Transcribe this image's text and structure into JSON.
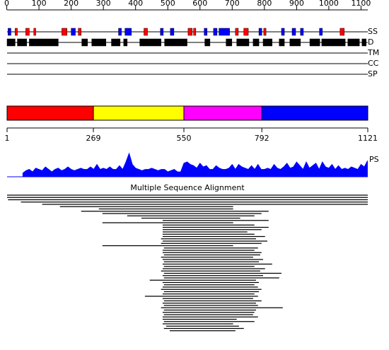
{
  "length": 1121,
  "ruler": {
    "ticks": [
      0,
      100,
      200,
      300,
      400,
      500,
      600,
      700,
      800,
      900,
      1000,
      1100
    ]
  },
  "tracks": {
    "ss": {
      "label": "SS",
      "helix_color": "#ff0000",
      "strand_color": "#0000ff",
      "helices": [
        [
          26,
          33
        ],
        [
          59,
          70
        ],
        [
          84,
          90
        ],
        [
          171,
          187
        ],
        [
          222,
          231
        ],
        [
          426,
          437
        ],
        [
          563,
          576
        ],
        [
          580,
          587
        ],
        [
          710,
          719
        ],
        [
          736,
          750
        ],
        [
          798,
          805
        ],
        [
          1035,
          1048
        ]
      ],
      "strands": [
        [
          4,
          13
        ],
        [
          200,
          213
        ],
        [
          347,
          356
        ],
        [
          367,
          387
        ],
        [
          477,
          486
        ],
        [
          508,
          519
        ],
        [
          613,
          622
        ],
        [
          642,
          653
        ],
        [
          659,
          692
        ],
        [
          783,
          792
        ],
        [
          853,
          862
        ],
        [
          886,
          897
        ],
        [
          912,
          921
        ],
        [
          971,
          980
        ]
      ]
    },
    "d": {
      "label": "D",
      "color": "#000000",
      "segments": [
        [
          1,
          26
        ],
        [
          33,
          62
        ],
        [
          70,
          160
        ],
        [
          233,
          251
        ],
        [
          264,
          308
        ],
        [
          325,
          352
        ],
        [
          363,
          374
        ],
        [
          413,
          479
        ],
        [
          490,
          560
        ],
        [
          615,
          631
        ],
        [
          681,
          699
        ],
        [
          714,
          752
        ],
        [
          765,
          783
        ],
        [
          796,
          824
        ],
        [
          846,
          862
        ],
        [
          879,
          912
        ],
        [
          941,
          972
        ],
        [
          978,
          1051
        ],
        [
          1059,
          1095
        ],
        [
          1103,
          1116
        ]
      ]
    },
    "tm": {
      "label": "TM"
    },
    "cc": {
      "label": "CC"
    },
    "sp": {
      "label": "SP"
    }
  },
  "domains": {
    "segments": [
      {
        "start": 1,
        "end": 269,
        "color": "#ff0000"
      },
      {
        "start": 269,
        "end": 550,
        "color": "#ffff00"
      },
      {
        "start": 550,
        "end": 792,
        "color": "#ff00ff"
      },
      {
        "start": 792,
        "end": 1121,
        "color": "#0000ff"
      }
    ],
    "boundaries": [
      1,
      269,
      550,
      792,
      1121
    ]
  },
  "ps": {
    "label": "PS",
    "color": "#0000ff",
    "start": 50,
    "step": 10,
    "values": [
      0.15,
      0.25,
      0.3,
      0.2,
      0.35,
      0.3,
      0.25,
      0.4,
      0.3,
      0.2,
      0.3,
      0.35,
      0.25,
      0.3,
      0.4,
      0.3,
      0.25,
      0.3,
      0.35,
      0.3,
      0.3,
      0.4,
      0.3,
      0.5,
      0.3,
      0.35,
      0.3,
      0.4,
      0.3,
      0.3,
      0.45,
      0.3,
      0.6,
      0.95,
      0.5,
      0.35,
      0.3,
      0.25,
      0.3,
      0.3,
      0.35,
      0.3,
      0.25,
      0.3,
      0.3,
      0.2,
      0.25,
      0.3,
      0.2,
      0.2,
      0.55,
      0.6,
      0.5,
      0.45,
      0.35,
      0.55,
      0.4,
      0.45,
      0.3,
      0.3,
      0.45,
      0.35,
      0.3,
      0.3,
      0.35,
      0.5,
      0.3,
      0.5,
      0.4,
      0.35,
      0.3,
      0.45,
      0.3,
      0.5,
      0.3,
      0.3,
      0.35,
      0.3,
      0.5,
      0.35,
      0.3,
      0.4,
      0.55,
      0.35,
      0.4,
      0.6,
      0.45,
      0.3,
      0.6,
      0.35,
      0.45,
      0.55,
      0.3,
      0.6,
      0.4,
      0.35,
      0.5,
      0.3,
      0.45,
      0.3,
      0.35,
      0.3,
      0.4,
      0.35,
      0.3,
      0.5,
      0.4,
      0.65
    ]
  },
  "msa": {
    "title": "Multiple Sequence Alignment",
    "rows": [
      [
        1,
        1121
      ],
      [
        1,
        1121
      ],
      [
        4,
        1121
      ],
      [
        44,
        1121
      ],
      [
        110,
        1121
      ],
      [
        165,
        703
      ],
      [
        286,
        703
      ],
      [
        231,
        813
      ],
      [
        297,
        791
      ],
      [
        374,
        769
      ],
      [
        418,
        725
      ],
      [
        484,
        813
      ],
      [
        297,
        703
      ],
      [
        484,
        769
      ],
      [
        484,
        813
      ],
      [
        484,
        791
      ],
      [
        484,
        747
      ],
      [
        484,
        769
      ],
      [
        484,
        802
      ],
      [
        479,
        774
      ],
      [
        484,
        809
      ],
      [
        479,
        791
      ],
      [
        297,
        703
      ],
      [
        488,
        780
      ],
      [
        484,
        769
      ],
      [
        484,
        791
      ],
      [
        488,
        787
      ],
      [
        479,
        765
      ],
      [
        484,
        796
      ],
      [
        488,
        783
      ],
      [
        484,
        824
      ],
      [
        488,
        769
      ],
      [
        484,
        802
      ],
      [
        479,
        787
      ],
      [
        488,
        853
      ],
      [
        484,
        796
      ],
      [
        488,
        846
      ],
      [
        444,
        774
      ],
      [
        484,
        783
      ],
      [
        488,
        769
      ],
      [
        484,
        780
      ],
      [
        479,
        791
      ],
      [
        488,
        783
      ],
      [
        484,
        769
      ],
      [
        429,
        780
      ],
      [
        484,
        765
      ],
      [
        488,
        791
      ],
      [
        484,
        774
      ],
      [
        488,
        780
      ],
      [
        479,
        857
      ],
      [
        488,
        774
      ],
      [
        484,
        769
      ],
      [
        488,
        765
      ],
      [
        484,
        780
      ],
      [
        484,
        714
      ],
      [
        488,
        769
      ],
      [
        484,
        703
      ],
      [
        495,
        721
      ],
      [
        488,
        736
      ],
      [
        506,
        710
      ]
    ]
  }
}
